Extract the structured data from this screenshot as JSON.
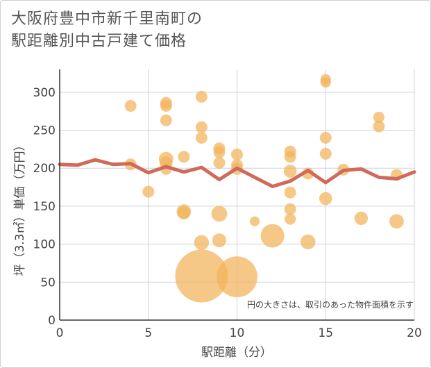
{
  "chart_data": {
    "type": "scatter",
    "title_lines": [
      "大阪府豊中市新千里南町の",
      "駅距離別中古戸建て価格"
    ],
    "xlabel": "駅距離（分）",
    "ylabel": "坪（3.3㎡）単価（万円）",
    "xlim": [
      0,
      20
    ],
    "ylim": [
      0,
      330
    ],
    "xticks": [
      "0",
      "5",
      "10",
      "15",
      "20"
    ],
    "xtick_values": [
      0,
      5,
      10,
      15,
      20
    ],
    "yticks": [
      "0",
      "50",
      "100",
      "150",
      "200",
      "250",
      "300"
    ],
    "ytick_values": [
      0,
      50,
      100,
      150,
      200,
      250,
      300
    ],
    "note": "円の大きさは、取引のあった物件面積を示す",
    "colors": {
      "bubble": "#f2b35a",
      "line": "#d06a5b",
      "grid": "#cbd3dd",
      "axis": "#333333"
    },
    "scatter": [
      {
        "x": 4,
        "y": 282,
        "size": 1
      },
      {
        "x": 4,
        "y": 205,
        "size": 1
      },
      {
        "x": 5,
        "y": 169,
        "size": 1
      },
      {
        "x": 6,
        "y": 286,
        "size": 1
      },
      {
        "x": 6,
        "y": 282,
        "size": 1
      },
      {
        "x": 6,
        "y": 263,
        "size": 1
      },
      {
        "x": 6,
        "y": 212,
        "size": 1.5
      },
      {
        "x": 6,
        "y": 207,
        "size": 1.2
      },
      {
        "x": 6,
        "y": 199,
        "size": 1
      },
      {
        "x": 7,
        "y": 215,
        "size": 1
      },
      {
        "x": 7,
        "y": 143,
        "size": 1.5
      },
      {
        "x": 7,
        "y": 141,
        "size": 1.2
      },
      {
        "x": 8,
        "y": 294,
        "size": 1
      },
      {
        "x": 8,
        "y": 254,
        "size": 1
      },
      {
        "x": 8,
        "y": 240,
        "size": 1
      },
      {
        "x": 8,
        "y": 102,
        "size": 1.6
      },
      {
        "x": 8,
        "y": 58,
        "size": 20
      },
      {
        "x": 9,
        "y": 226,
        "size": 1
      },
      {
        "x": 9,
        "y": 221,
        "size": 1
      },
      {
        "x": 9,
        "y": 207,
        "size": 1
      },
      {
        "x": 9,
        "y": 140,
        "size": 1.8
      },
      {
        "x": 9,
        "y": 105,
        "size": 1.4
      },
      {
        "x": 10,
        "y": 218,
        "size": 1
      },
      {
        "x": 10,
        "y": 204,
        "size": 1
      },
      {
        "x": 10,
        "y": 199,
        "size": 1
      },
      {
        "x": 10,
        "y": 57,
        "size": 12
      },
      {
        "x": 11,
        "y": 130,
        "size": 0.7
      },
      {
        "x": 12,
        "y": 111,
        "size": 4
      },
      {
        "x": 13,
        "y": 222,
        "size": 1
      },
      {
        "x": 13,
        "y": 215,
        "size": 1
      },
      {
        "x": 13,
        "y": 196,
        "size": 1.2
      },
      {
        "x": 13,
        "y": 168,
        "size": 1
      },
      {
        "x": 13,
        "y": 146,
        "size": 1
      },
      {
        "x": 13,
        "y": 133,
        "size": 0.9
      },
      {
        "x": 14,
        "y": 193,
        "size": 1
      },
      {
        "x": 14,
        "y": 103,
        "size": 1.6
      },
      {
        "x": 15,
        "y": 317,
        "size": 0.8
      },
      {
        "x": 15,
        "y": 313,
        "size": 0.8
      },
      {
        "x": 15,
        "y": 240,
        "size": 1
      },
      {
        "x": 15,
        "y": 219,
        "size": 1
      },
      {
        "x": 15,
        "y": 160,
        "size": 1.2
      },
      {
        "x": 16,
        "y": 198,
        "size": 1
      },
      {
        "x": 17,
        "y": 134,
        "size": 1.3
      },
      {
        "x": 18,
        "y": 267,
        "size": 0.9
      },
      {
        "x": 18,
        "y": 255,
        "size": 1
      },
      {
        "x": 19,
        "y": 191,
        "size": 1
      },
      {
        "x": 19,
        "y": 130,
        "size": 1.5
      }
    ],
    "line": {
      "x": [
        0,
        1,
        2,
        3,
        4,
        5,
        6,
        7,
        8,
        9,
        10,
        11,
        12,
        13,
        14,
        15,
        16,
        17,
        18,
        19,
        20
      ],
      "y": [
        205,
        204,
        211,
        205,
        206,
        194,
        202,
        195,
        201,
        185,
        200,
        188,
        176,
        183,
        197,
        181,
        197,
        199,
        188,
        186,
        195
      ]
    }
  }
}
